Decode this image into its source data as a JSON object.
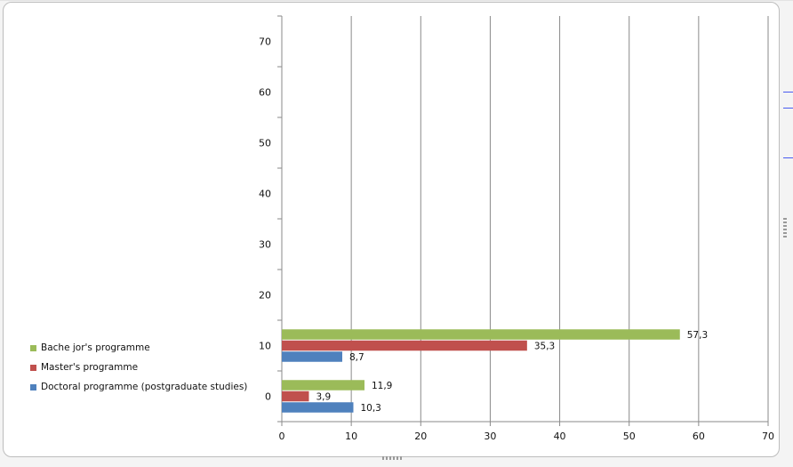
{
  "chart_data": {
    "type": "bar",
    "orientation": "horizontal",
    "categories": [
      "0",
      "10"
    ],
    "series": [
      {
        "name": "Doctoral programme (postgraduate studies)",
        "color": "#4f81bd",
        "values": [
          10.3,
          8.7
        ],
        "labels": [
          "10,3",
          "8,7"
        ]
      },
      {
        "name": "Master's programme",
        "color": "#c0504d",
        "values": [
          3.9,
          35.3
        ],
        "labels": [
          "3,9",
          "35,3"
        ]
      },
      {
        "name": "Bache jor's programme",
        "color": "#9bbb59",
        "values": [
          11.9,
          57.3
        ],
        "labels": [
          "11,9",
          "57,3"
        ]
      }
    ],
    "xlim": [
      0,
      70
    ],
    "x_ticks": [
      "0",
      "10",
      "20",
      "30",
      "40",
      "50",
      "60",
      "70"
    ],
    "ylim": [
      -5,
      75
    ],
    "y_ticks": [
      "0",
      "10",
      "20",
      "30",
      "40",
      "50",
      "60",
      "70"
    ],
    "y_tick_values": [
      0,
      10,
      20,
      30,
      40,
      50,
      60,
      70
    ],
    "grid": "vertical",
    "legend_position": "left-bottom",
    "legend_order": [
      2,
      1,
      0
    ],
    "title": "",
    "xlabel": "",
    "ylabel": ""
  }
}
